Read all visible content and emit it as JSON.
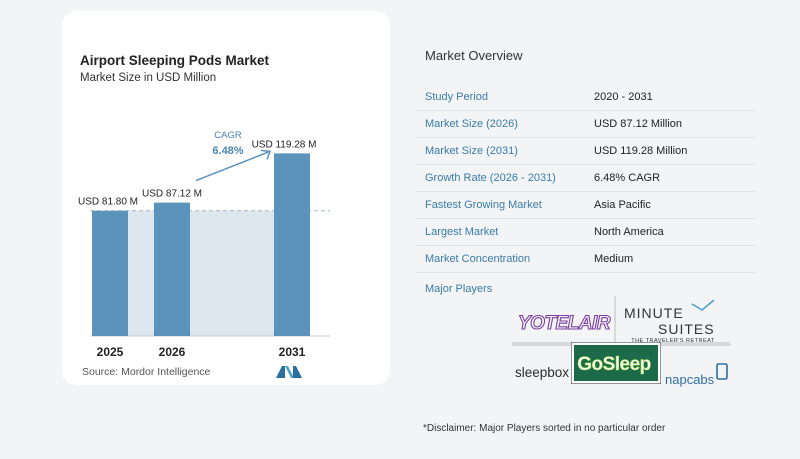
{
  "chart": {
    "title": "Airport Sleeping Pods Market",
    "subtitle": "Market Size in USD Million",
    "source": "Source:  Mordor Intelligence",
    "cagr_label": "CAGR",
    "cagr_value": "6.48%"
  },
  "chart_data": {
    "type": "bar",
    "categories": [
      "2025",
      "2026",
      "2031"
    ],
    "values": [
      81.8,
      87.12,
      119.28
    ],
    "data_labels": [
      "USD 81.80 M",
      "USD 87.12 M",
      "USD 119.28 M"
    ],
    "title": "Airport Sleeping Pods Market",
    "subtitle": "Market Size in USD Million",
    "xlabel": "",
    "ylabel": "",
    "ylim": [
      0,
      128
    ],
    "grid": false,
    "bar_color": "#5b93bb",
    "band_color": "#dde7ef",
    "cagr": "6.48%"
  },
  "overview": {
    "title": "Market Overview",
    "rows": [
      {
        "key": "Study Period",
        "value": "2020 - 2031"
      },
      {
        "key": "Market Size (2026)",
        "value": "USD 87.12 Million"
      },
      {
        "key": "Market Size (2031)",
        "value": "USD 119.28 Million"
      },
      {
        "key": "Growth Rate (2026 - 2031)",
        "value": "6.48% CAGR"
      },
      {
        "key": "Fastest Growing Market",
        "value": "Asia Pacific"
      },
      {
        "key": "Largest Market",
        "value": "North America"
      },
      {
        "key": "Market Concentration",
        "value": "Medium"
      }
    ]
  },
  "players": {
    "title": "Major Players",
    "logos": {
      "yotelair": "YOTELAIR",
      "minute_suites_1": "MINUTE",
      "minute_suites_2": "SUITES",
      "minute_suites_tag": "THE TRAVELER'S RETREAT",
      "gosleep": "GoSleep",
      "sleepbox": "sleepbox",
      "napcabs": "napcabs"
    }
  },
  "disclaimer": "*Disclaimer: Major Players sorted in no particular order",
  "colors": {
    "accent": "#3a7ca8",
    "bar": "#5b93bb",
    "band": "#dde7ef",
    "yotel": "#7b3fa0",
    "gosleep_bg": "#1d6a4a",
    "gosleep_text": "#8ed43a"
  }
}
